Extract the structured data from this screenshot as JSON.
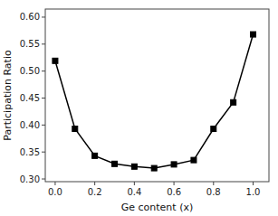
{
  "chart_data": {
    "type": "line",
    "x": [
      0.0,
      0.1,
      0.2,
      0.3,
      0.4,
      0.5,
      0.6,
      0.7,
      0.8,
      0.9,
      1.0
    ],
    "values": [
      0.519,
      0.393,
      0.343,
      0.328,
      0.323,
      0.32,
      0.327,
      0.335,
      0.393,
      0.442,
      0.568
    ],
    "xlabel": "Ge content (x)",
    "ylabel": "Participation Ratio",
    "xlim": [
      -0.05,
      1.08
    ],
    "ylim": [
      0.295,
      0.615
    ],
    "xticks": [
      {
        "value": 0.0,
        "label": "0.0"
      },
      {
        "value": 0.2,
        "label": "0.2"
      },
      {
        "value": 0.4,
        "label": "0.4"
      },
      {
        "value": 0.6,
        "label": "0.6"
      },
      {
        "value": 0.8,
        "label": "0.8"
      },
      {
        "value": 1.0,
        "label": "1.0"
      }
    ],
    "yticks": [
      {
        "value": 0.3,
        "label": "0.30"
      },
      {
        "value": 0.35,
        "label": "0.35"
      },
      {
        "value": 0.4,
        "label": "0.40"
      },
      {
        "value": 0.45,
        "label": "0.45"
      },
      {
        "value": 0.5,
        "label": "0.50"
      },
      {
        "value": 0.55,
        "label": "0.55"
      },
      {
        "value": 0.6,
        "label": "0.60"
      }
    ],
    "color": "#000000",
    "marker": "square"
  }
}
